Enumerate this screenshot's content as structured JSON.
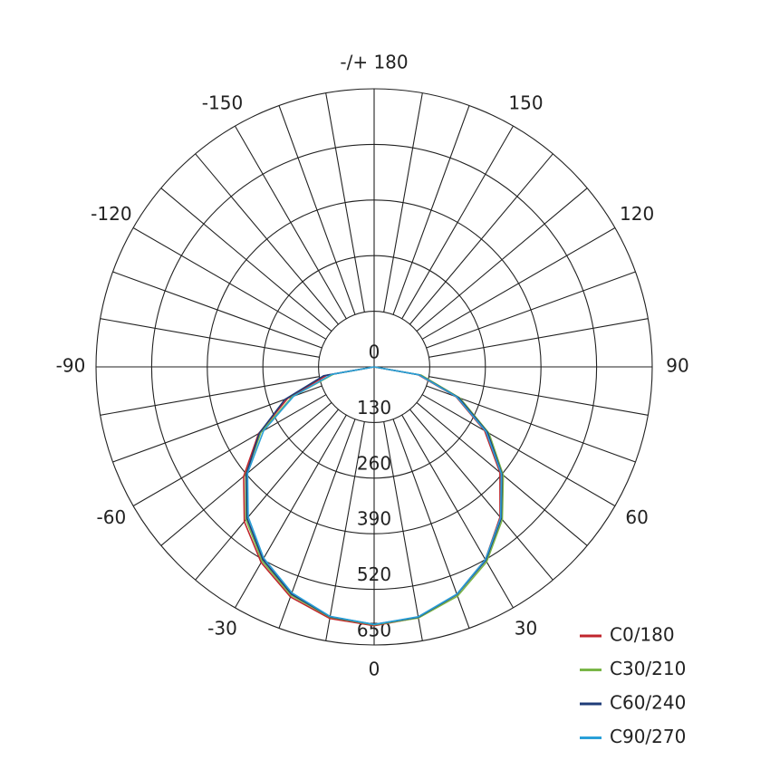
{
  "chart_data": {
    "type": "polar",
    "x": [
      -90,
      -80,
      -70,
      -60,
      -50,
      -40,
      -30,
      -20,
      -10,
      0,
      10,
      20,
      30,
      40,
      50,
      60,
      70,
      80,
      90
    ],
    "series": [
      {
        "name": "C0/180",
        "color": "#c0262d",
        "values": [
          0,
          112,
          215,
          312,
          398,
          472,
          528,
          572,
          597,
          605,
          595,
          566,
          520,
          458,
          384,
          298,
          204,
          104,
          0
        ]
      },
      {
        "name": "C30/210",
        "color": "#7ab648",
        "values": [
          0,
          96,
          204,
          305,
          392,
          466,
          524,
          568,
          594,
          603,
          596,
          570,
          526,
          466,
          394,
          310,
          214,
          112,
          0
        ]
      },
      {
        "name": "C60/240",
        "color": "#1f3c78",
        "values": [
          0,
          120,
          222,
          310,
          390,
          462,
          520,
          565,
          593,
          602,
          594,
          566,
          522,
          462,
          390,
          306,
          210,
          108,
          0
        ]
      },
      {
        "name": "C90/270",
        "color": "#2aa0d8",
        "values": [
          0,
          100,
          200,
          298,
          386,
          458,
          516,
          562,
          592,
          602,
          593,
          565,
          520,
          460,
          388,
          302,
          206,
          106,
          0
        ]
      }
    ],
    "xticks": [
      0,
      30,
      60,
      90,
      120,
      150,
      {
        "value": 180,
        "label": "-/+ 180"
      },
      -150,
      -120,
      -90,
      -60,
      -30
    ],
    "angle_grid_step": 10,
    "ylim": [
      0,
      650
    ],
    "yticks": [
      0,
      130,
      260,
      390,
      520,
      650
    ],
    "grid": true,
    "legend": "lower right"
  }
}
